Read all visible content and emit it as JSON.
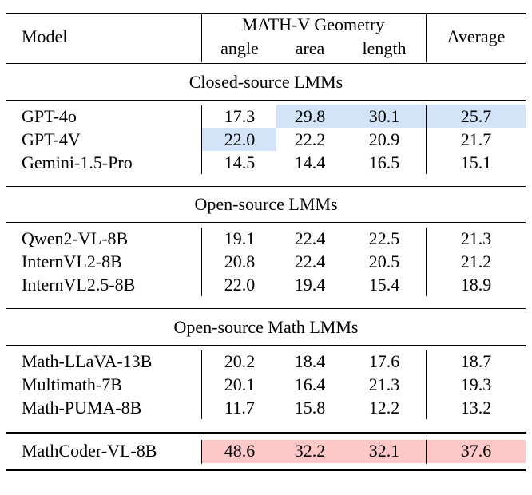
{
  "header": {
    "model": "Model",
    "group": "MATH-V Geometry",
    "columns": [
      "angle",
      "area",
      "length"
    ],
    "average": "Average"
  },
  "colors": {
    "best_closed": "#d3e4f8",
    "ours": "#ffc8c8"
  },
  "sections": [
    {
      "title": "Closed-source LMMs",
      "rows": [
        {
          "model": "GPT-4o",
          "values": [
            "17.3",
            "29.8",
            "30.1",
            "25.7"
          ],
          "highlight": [
            false,
            true,
            true,
            true
          ]
        },
        {
          "model": "GPT-4V",
          "values": [
            "22.0",
            "22.2",
            "20.9",
            "21.7"
          ],
          "highlight": [
            true,
            false,
            false,
            false
          ]
        },
        {
          "model": "Gemini-1.5-Pro",
          "values": [
            "14.5",
            "14.4",
            "16.5",
            "15.1"
          ],
          "highlight": [
            false,
            false,
            false,
            false
          ]
        }
      ]
    },
    {
      "title": "Open-source LMMs",
      "rows": [
        {
          "model": "Qwen2-VL-8B",
          "values": [
            "19.1",
            "22.4",
            "22.5",
            "21.3"
          ],
          "highlight": [
            false,
            false,
            false,
            false
          ]
        },
        {
          "model": "InternVL2-8B",
          "values": [
            "20.8",
            "22.4",
            "20.5",
            "21.2"
          ],
          "highlight": [
            false,
            false,
            false,
            false
          ]
        },
        {
          "model": "InternVL2.5-8B",
          "values": [
            "22.0",
            "19.4",
            "15.4",
            "18.9"
          ],
          "highlight": [
            false,
            false,
            false,
            false
          ]
        }
      ]
    },
    {
      "title": "Open-source Math LMMs",
      "rows": [
        {
          "model": "Math-LLaVA-13B",
          "values": [
            "20.2",
            "18.4",
            "17.6",
            "18.7"
          ],
          "highlight": [
            false,
            false,
            false,
            false
          ]
        },
        {
          "model": "Multimath-7B",
          "values": [
            "20.1",
            "16.4",
            "21.3",
            "19.3"
          ],
          "highlight": [
            false,
            false,
            false,
            false
          ]
        },
        {
          "model": "Math-PUMA-8B",
          "values": [
            "11.7",
            "15.8",
            "12.2",
            "13.2"
          ],
          "highlight": [
            false,
            false,
            false,
            false
          ]
        }
      ]
    }
  ],
  "ours": {
    "model": "MathCoder-VL-8B",
    "values": [
      "48.6",
      "32.2",
      "32.1",
      "37.6"
    ]
  }
}
